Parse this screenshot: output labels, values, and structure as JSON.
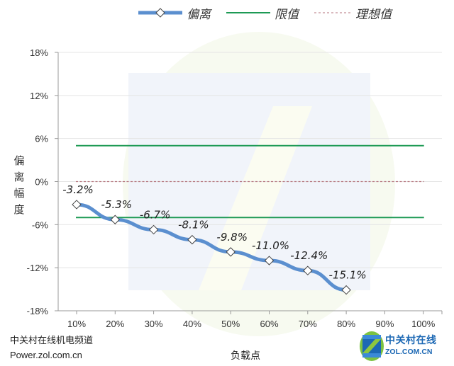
{
  "legend": {
    "items": [
      {
        "label": "偏离",
        "style": "line-marker",
        "color": "#5b8fcf"
      },
      {
        "label": "限值",
        "style": "solid",
        "color": "#1e9a55"
      },
      {
        "label": "理想值",
        "style": "dashed",
        "color": "#b5737c"
      }
    ]
  },
  "axes": {
    "y_title": "偏离幅度",
    "x_title": "负载点"
  },
  "footer": {
    "source_line1": "中关村在线机电频道",
    "source_line2": "Power.zol.com.cn",
    "logo_cn": "中关村在线",
    "logo_en": "ZOL.COM.CN"
  },
  "chart_data": {
    "type": "line",
    "title": "",
    "xlabel": "负载点",
    "ylabel": "偏离幅度",
    "categories": [
      "10%",
      "20%",
      "30%",
      "40%",
      "50%",
      "60%",
      "70%",
      "80%",
      "90%",
      "100%"
    ],
    "y_ticks": [
      "18%",
      "12%",
      "6%",
      "0%",
      "-6%",
      "-12%",
      "-18%"
    ],
    "ylim": [
      -18,
      18
    ],
    "grid": true,
    "legend_position": "top",
    "series": [
      {
        "name": "偏离",
        "values": [
          -3.2,
          -5.3,
          -6.7,
          -8.1,
          -9.8,
          -11.0,
          -12.4,
          -15.1,
          null,
          null
        ],
        "labels": [
          "-3.2%",
          "-5.3%",
          "-6.7%",
          "-8.1%",
          "-9.8%",
          "-11.0%",
          "-12.4%",
          "-15.1%"
        ]
      },
      {
        "name": "限值",
        "values": [
          5,
          5,
          5,
          5,
          5,
          5,
          5,
          5,
          5,
          5
        ]
      },
      {
        "name": "限值",
        "values": [
          -5,
          -5,
          -5,
          -5,
          -5,
          -5,
          -5,
          -5,
          -5,
          -5
        ]
      },
      {
        "name": "理想值",
        "values": [
          0,
          0,
          0,
          0,
          0,
          0,
          0,
          0,
          0,
          0
        ]
      }
    ]
  }
}
